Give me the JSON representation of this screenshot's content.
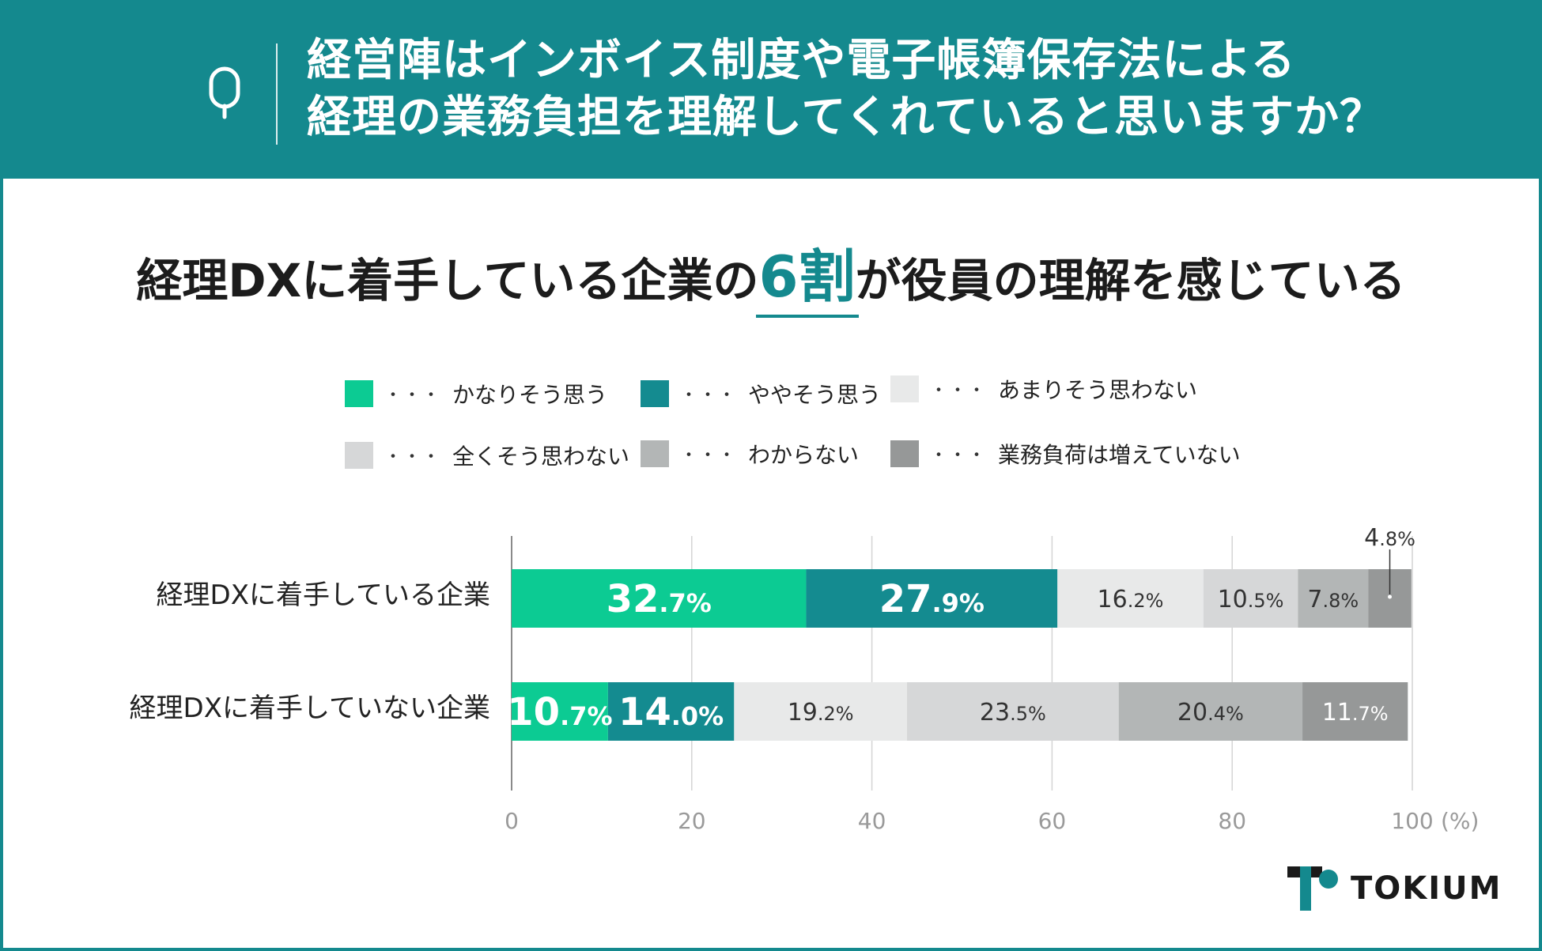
{
  "header": {
    "q_letter": "Q",
    "line1": "経営陣はインボイス制度や電子帳簿保存法による",
    "line2": "経理の業務負担を理解してくれていると思いますか？"
  },
  "headline": {
    "before": "経理DXに着手している企業の",
    "highlight": "6割",
    "after": "が役員の理解を感じている"
  },
  "legend": {
    "dots": "・・・",
    "items": [
      {
        "label": "かなりそう思う",
        "color": "#0ccb93"
      },
      {
        "label": "ややそう思う",
        "color": "#148b90"
      },
      {
        "label": "あまりそう思わない",
        "color": "#e8e9e9"
      },
      {
        "label": "全くそう思わない",
        "color": "#d6d7d8"
      },
      {
        "label": "わからない",
        "color": "#b3b6b6"
      },
      {
        "label": "業務負荷は増えていない",
        "color": "#969898"
      }
    ]
  },
  "chart_data": {
    "type": "bar",
    "orientation": "horizontal",
    "stacked": true,
    "categories": [
      "経理DXに着手している企業",
      "経理DXに着手していない企業"
    ],
    "series": [
      {
        "name": "かなりそう思う",
        "color": "#0ccb93",
        "values": [
          32.7,
          10.7
        ],
        "labels": [
          [
            "32",
            ".7%"
          ],
          [
            "10",
            ".7%"
          ]
        ]
      },
      {
        "name": "ややそう思う",
        "color": "#148b90",
        "values": [
          27.9,
          14.0
        ],
        "labels": [
          [
            "27",
            ".9%"
          ],
          [
            "14",
            ".0%"
          ]
        ]
      },
      {
        "name": "あまりそう思わない",
        "color": "#e8e9e9",
        "values": [
          16.2,
          19.2
        ],
        "labels": [
          [
            "16",
            ".2%"
          ],
          [
            "19",
            ".2%"
          ]
        ]
      },
      {
        "name": "全くそう思わない",
        "color": "#d6d7d8",
        "values": [
          10.5,
          23.5
        ],
        "labels": [
          [
            "10",
            ".5%"
          ],
          [
            "23",
            ".5%"
          ]
        ]
      },
      {
        "name": "わからない",
        "color": "#b3b6b6",
        "values": [
          7.8,
          20.4
        ],
        "labels": [
          [
            "7",
            ".8%"
          ],
          [
            "20",
            ".4%"
          ]
        ]
      },
      {
        "name": "業務負荷は増えていない",
        "color": "#969898",
        "values": [
          4.8,
          11.7
        ],
        "labels": [
          [
            "4",
            ".8%"
          ],
          [
            "11",
            ".7%"
          ]
        ]
      }
    ],
    "xlim": [
      0,
      100
    ],
    "xticks": [
      "0",
      "20",
      "40",
      "60",
      "80",
      "100"
    ],
    "xunit": "(%)",
    "grid": true
  },
  "logo": {
    "text": "TOKIUM",
    "color_dark": "#1a1a1a",
    "color_accent": "#14898e"
  }
}
